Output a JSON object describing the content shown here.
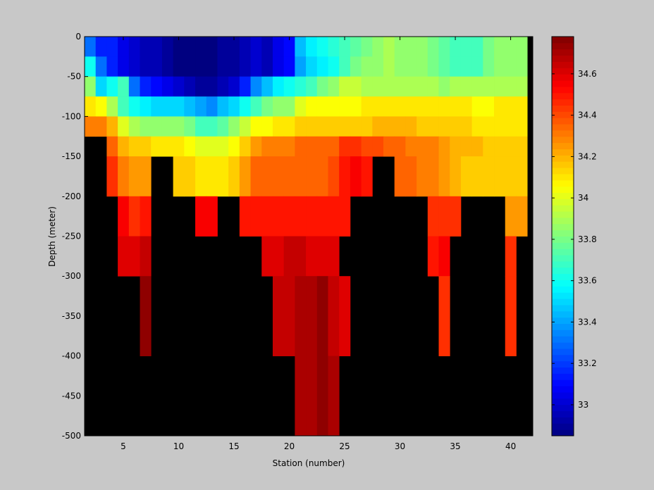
{
  "chart_data": {
    "type": "heatmap",
    "xlabel": "Station (number)",
    "ylabel": "Depth (meter)",
    "xlim": [
      1.5,
      42.0
    ],
    "ylim": [
      -500,
      0
    ],
    "x_ticks": [
      5,
      10,
      15,
      20,
      25,
      30,
      35,
      40
    ],
    "y_ticks": [
      0,
      -50,
      -100,
      -150,
      -200,
      -250,
      -300,
      -350,
      -400,
      -450,
      -500
    ],
    "stations": [
      2,
      3,
      4,
      5,
      6,
      7,
      8,
      9,
      10,
      11,
      12,
      13,
      14,
      15,
      16,
      17,
      18,
      19,
      20,
      21,
      22,
      23,
      24,
      25,
      26,
      27,
      28,
      29,
      30,
      31,
      32,
      33,
      34,
      35,
      36,
      37,
      38,
      39,
      40,
      41
    ],
    "depth_rows": [
      {
        "top": 0,
        "bottom": -25
      },
      {
        "top": -25,
        "bottom": -50
      },
      {
        "top": -50,
        "bottom": -75
      },
      {
        "top": -75,
        "bottom": -100
      },
      {
        "top": -100,
        "bottom": -125
      },
      {
        "top": -125,
        "bottom": -150
      },
      {
        "top": -150,
        "bottom": -200
      },
      {
        "top": -200,
        "bottom": -250
      },
      {
        "top": -250,
        "bottom": -300
      },
      {
        "top": -300,
        "bottom": -400
      },
      {
        "top": -400,
        "bottom": -500
      }
    ],
    "salinity": [
      [
        33.3,
        33.15,
        33.15,
        33.05,
        33.0,
        32.95,
        32.95,
        32.9,
        32.85,
        32.85,
        32.85,
        32.85,
        32.9,
        32.9,
        32.95,
        33.0,
        32.95,
        33.05,
        33.1,
        33.45,
        33.55,
        33.6,
        33.65,
        33.7,
        33.75,
        33.8,
        33.85,
        33.9,
        33.85,
        33.85,
        33.85,
        33.8,
        33.75,
        33.7,
        33.7,
        33.7,
        33.8,
        33.85,
        33.85,
        33.85
      ],
      [
        33.6,
        33.3,
        33.15,
        33.05,
        33.0,
        32.95,
        32.95,
        32.9,
        32.85,
        32.85,
        32.85,
        32.85,
        32.9,
        32.9,
        32.95,
        33.0,
        32.95,
        33.05,
        33.1,
        33.4,
        33.5,
        33.55,
        33.6,
        33.7,
        33.8,
        33.85,
        33.85,
        33.9,
        33.85,
        33.85,
        33.85,
        33.8,
        33.75,
        33.7,
        33.7,
        33.7,
        33.8,
        33.85,
        33.85,
        33.85
      ],
      [
        33.85,
        33.5,
        33.6,
        33.7,
        33.3,
        33.15,
        33.1,
        33.05,
        33.0,
        32.95,
        32.9,
        32.9,
        32.95,
        33.0,
        33.15,
        33.35,
        33.45,
        33.55,
        33.6,
        33.65,
        33.7,
        33.8,
        33.85,
        33.95,
        33.95,
        33.9,
        33.9,
        33.9,
        33.9,
        33.9,
        33.9,
        33.9,
        33.85,
        33.9,
        33.9,
        33.9,
        33.9,
        33.9,
        33.9,
        33.9
      ],
      [
        34.1,
        34.05,
        33.9,
        33.7,
        33.6,
        33.55,
        33.5,
        33.5,
        33.5,
        33.45,
        33.4,
        33.35,
        33.45,
        33.5,
        33.6,
        33.7,
        33.8,
        33.85,
        33.85,
        34.0,
        34.05,
        34.05,
        34.05,
        34.05,
        34.05,
        34.1,
        34.1,
        34.1,
        34.1,
        34.1,
        34.1,
        34.1,
        34.1,
        34.1,
        34.1,
        34.05,
        34.05,
        34.1,
        34.1,
        34.1
      ],
      [
        34.3,
        34.3,
        34.2,
        34.0,
        33.9,
        33.85,
        33.85,
        33.85,
        33.85,
        33.8,
        33.7,
        33.7,
        33.75,
        33.85,
        33.95,
        34.05,
        34.05,
        34.1,
        34.1,
        34.15,
        34.15,
        34.15,
        34.15,
        34.15,
        34.15,
        34.15,
        34.2,
        34.2,
        34.2,
        34.2,
        34.15,
        34.15,
        34.15,
        34.15,
        34.15,
        34.1,
        34.1,
        34.1,
        34.1,
        34.1
      ],
      [
        null,
        null,
        34.35,
        34.2,
        34.15,
        34.15,
        34.1,
        34.1,
        34.1,
        34.05,
        34.0,
        34.0,
        34.0,
        34.05,
        34.15,
        34.25,
        34.3,
        34.3,
        34.3,
        34.35,
        34.35,
        34.35,
        34.35,
        34.45,
        34.45,
        34.4,
        34.4,
        34.35,
        34.35,
        34.3,
        34.3,
        34.3,
        34.25,
        34.2,
        34.2,
        34.2,
        34.15,
        34.15,
        34.15,
        34.15
      ],
      [
        null,
        null,
        34.45,
        34.3,
        34.25,
        34.25,
        null,
        null,
        34.15,
        34.15,
        34.1,
        34.1,
        34.1,
        34.15,
        34.25,
        34.35,
        34.35,
        34.35,
        34.35,
        34.35,
        34.35,
        34.35,
        34.4,
        34.5,
        34.55,
        34.5,
        null,
        null,
        34.35,
        34.35,
        34.3,
        34.3,
        34.25,
        34.2,
        34.15,
        34.15,
        34.15,
        34.15,
        34.15,
        34.15
      ],
      [
        null,
        null,
        null,
        34.55,
        34.45,
        34.5,
        null,
        null,
        null,
        null,
        34.55,
        34.55,
        null,
        null,
        34.5,
        34.5,
        34.5,
        34.5,
        34.5,
        34.5,
        34.5,
        34.5,
        34.5,
        34.5,
        null,
        null,
        null,
        null,
        null,
        null,
        null,
        34.45,
        34.45,
        34.45,
        null,
        null,
        null,
        null,
        34.25,
        34.25
      ],
      [
        null,
        null,
        null,
        34.6,
        34.6,
        34.65,
        null,
        null,
        null,
        null,
        null,
        null,
        null,
        null,
        null,
        null,
        34.6,
        34.6,
        34.65,
        34.65,
        34.6,
        34.6,
        34.6,
        null,
        null,
        null,
        null,
        null,
        null,
        null,
        null,
        34.5,
        34.55,
        null,
        null,
        null,
        null,
        null,
        34.45,
        null
      ],
      [
        null,
        null,
        null,
        null,
        null,
        34.75,
        null,
        null,
        null,
        null,
        null,
        null,
        null,
        null,
        null,
        null,
        null,
        34.65,
        34.65,
        34.7,
        34.7,
        34.75,
        34.65,
        34.6,
        null,
        null,
        null,
        null,
        null,
        null,
        null,
        null,
        34.45,
        null,
        null,
        null,
        null,
        null,
        34.45,
        null
      ],
      [
        null,
        null,
        null,
        null,
        null,
        null,
        null,
        null,
        null,
        null,
        null,
        null,
        null,
        null,
        null,
        null,
        null,
        null,
        null,
        34.7,
        34.7,
        34.75,
        34.7,
        null,
        null,
        null,
        null,
        null,
        null,
        null,
        null,
        null,
        null,
        null,
        null,
        null,
        null,
        null,
        null,
        null
      ]
    ],
    "colorbar": {
      "min": 32.85,
      "max": 34.78,
      "ticks": [
        33,
        33.2,
        33.4,
        33.6,
        33.8,
        34,
        34.2,
        34.4,
        34.6
      ]
    },
    "grid": false,
    "legend": "colorbar-right"
  },
  "colors": {
    "figure_background": "#c8c8c8",
    "missing_data": "#000000"
  }
}
